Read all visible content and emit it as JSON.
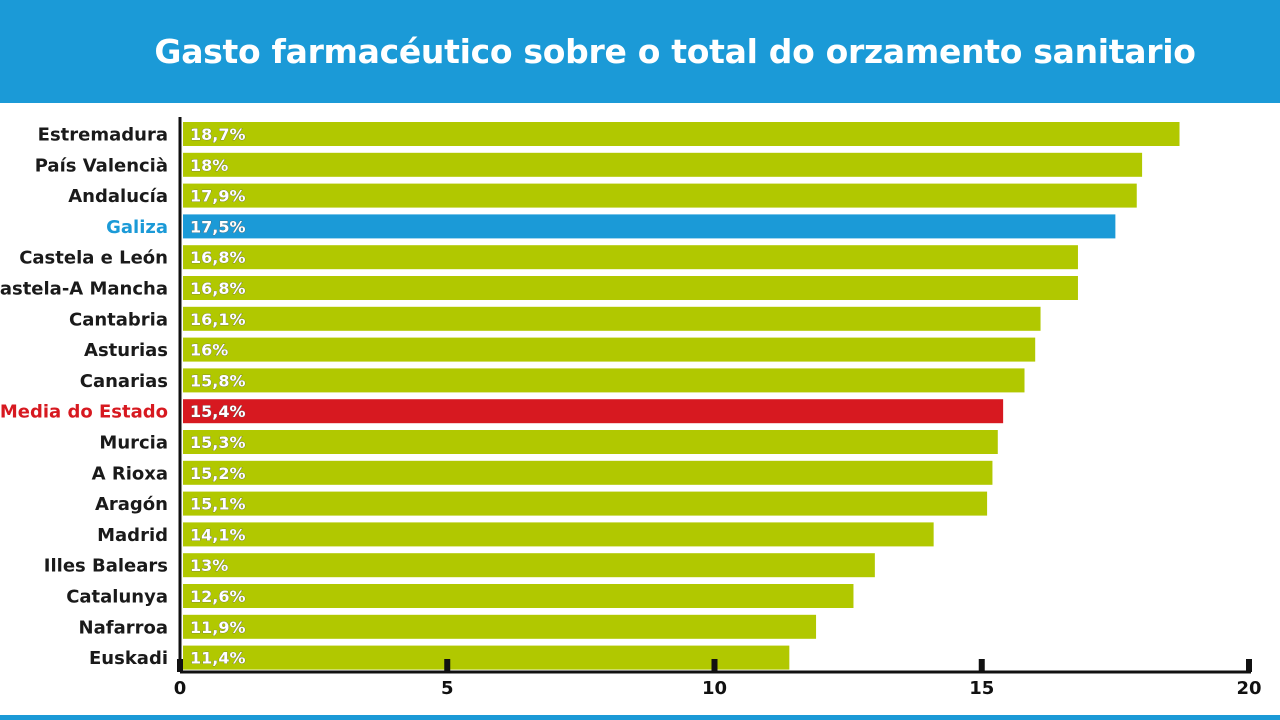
{
  "header": {
    "title": "Gasto farmacéutico sobre o total do orzamento sanitario"
  },
  "colors": {
    "header_bg": "#1b9ad7",
    "bar_default": "#b1c800",
    "bar_highlight_galiza": "#1b9ad7",
    "bar_highlight_average": "#d71920",
    "label_default": "#1a1a1a",
    "label_galiza": "#1b9ad7",
    "label_average": "#d71920"
  },
  "chart_data": {
    "type": "bar",
    "orientation": "horizontal",
    "title": "Gasto farmacéutico sobre o total do orzamento sanitario",
    "categories": [
      "Estremadura",
      "País Valencià",
      "Andalucía",
      "Galiza",
      "Castela e León",
      "Castela-A Mancha",
      "Cantabria",
      "Asturias",
      "Canarias",
      "Media do Estado",
      "Murcia",
      "A Rioxa",
      "Aragón",
      "Madrid",
      "Illes Balears",
      "Catalunya",
      "Nafarroa",
      "Euskadi"
    ],
    "values": [
      18.7,
      18,
      17.9,
      17.5,
      16.8,
      16.8,
      16.1,
      16,
      15.8,
      15.4,
      15.3,
      15.2,
      15.1,
      14.1,
      13,
      12.6,
      11.9,
      11.4
    ],
    "value_labels": [
      "18,7%",
      "18%",
      "17,9%",
      "17,5%",
      "16,8%",
      "16,8%",
      "16,1%",
      "16%",
      "15,8%",
      "15,4%",
      "15,3%",
      "15,2%",
      "15,1%",
      "14,1%",
      "13%",
      "12,6%",
      "11,9%",
      "11,4%"
    ],
    "highlight": {
      "Galiza": "galiza",
      "Media do Estado": "average"
    },
    "xlim": [
      0,
      20
    ],
    "xticks": [
      0,
      5,
      10,
      15,
      20
    ],
    "xlabel": "",
    "ylabel": "",
    "grid": false,
    "legend": "none"
  }
}
